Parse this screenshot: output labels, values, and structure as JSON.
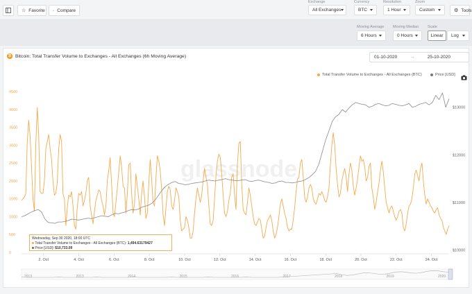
{
  "toolbar": {
    "favorite_label": "Favorite",
    "compare_label": "Compare",
    "tools_label": "Tools",
    "exchange": {
      "label": "Exchange",
      "value": "All Exchanges"
    },
    "currency": {
      "label": "Currency",
      "value": "BTC"
    },
    "resolution": {
      "label": "Resolution",
      "value": "1 Hour"
    },
    "zoom": {
      "label": "Zoom",
      "value": "Custom"
    }
  },
  "controls": {
    "moving_average": {
      "label": "Moving Average",
      "value": "6 Hours"
    },
    "moving_median": {
      "label": "Moving Median",
      "value": "0 Hours"
    },
    "scale": {
      "label": "Scale",
      "options": [
        "Linear",
        "Log"
      ],
      "selected": "Linear"
    }
  },
  "chart_panel": {
    "title": "Bitcoin: Total Transfer Volume to Exchanges - All Exchanges (6h Moving Average)",
    "date_from": "01-10-2020",
    "date_to": "25-10-2020",
    "date_separator": "→",
    "watermark": "glassnode"
  },
  "tooltip": {
    "timestamp": "Wednesday, Sep 30 2020, 18:00 UTC",
    "volume_label": "Total Transfer Volume to Exchanges - All Exchanges (BTC):",
    "volume_value": "1,494.63179427",
    "price_label": "Price [USD]:",
    "price_value": "$10,733.09"
  },
  "colors": {
    "volume": "#f5a94c",
    "price": "#8a8a8a",
    "accent": "#f7931a"
  },
  "chart_data": {
    "type": "line",
    "series": [
      {
        "name": "Total Transfer Volume to Exchanges - All Exchanges (BTC)",
        "axis": "left",
        "values": [
          1450,
          1500,
          1550,
          1650,
          3050,
          3700,
          3250,
          2400,
          1500,
          1150,
          3050,
          4050,
          3300,
          1700,
          1650,
          1650,
          2000,
          2900,
          3100,
          3300,
          2900,
          2600,
          2000,
          1600,
          1650,
          1950,
          2900,
          3300,
          3100,
          1650,
          1500,
          750,
          1250,
          1600,
          1550,
          1700,
          1300,
          750,
          650,
          1250,
          1650,
          1600,
          1700,
          1300,
          1450,
          1650,
          2000,
          2100,
          1300,
          1050,
          800,
          1150,
          1450,
          1600,
          1750,
          1700,
          1450,
          1300,
          1050,
          1300,
          2000,
          2300,
          2650,
          1900,
          1100,
          1000,
          1400,
          1800,
          2250,
          2700,
          2400,
          1850,
          1800,
          1100,
          1650,
          2450,
          2500,
          1650,
          1100,
          1350,
          2200,
          1850,
          1500,
          1050,
          1650,
          2000,
          1550,
          950,
          1100,
          1950,
          2600,
          2050,
          1400,
          1300,
          2100,
          2700,
          2550,
          2300,
          1750,
          1050,
          750,
          1250,
          1700,
          1850,
          1750,
          1300,
          1200,
          1450,
          1800,
          1700,
          1550,
          900,
          600,
          650,
          700,
          1000,
          900,
          700,
          400,
          400,
          600,
          1100,
          1500,
          1800,
          1600,
          1400,
          1600,
          2000,
          2350,
          2100,
          1900,
          1300,
          800,
          750,
          900,
          1500,
          2150,
          2550,
          2750,
          2650,
          2200,
          1600,
          1100,
          1000,
          1150,
          1450,
          1650,
          2100,
          2200,
          1600,
          1200,
          2500,
          3050,
          3100,
          1900,
          1200,
          1100,
          1050,
          1400,
          1800,
          1600,
          1300,
          1000,
          800,
          750,
          850,
          950,
          900,
          650,
          400,
          450,
          700,
          900,
          950,
          1050,
          900,
          600,
          400,
          500,
          700,
          1000,
          1350,
          1500,
          1300,
          1100,
          950,
          700,
          600,
          650,
          650,
          900,
          1250,
          1700,
          2050,
          2100,
          2500,
          2600,
          2100,
          1550,
          1400,
          1550,
          1800,
          1900,
          1800,
          1500,
          1400,
          1350,
          1500,
          1650,
          1600,
          1700,
          1600,
          1450,
          1400,
          1550,
          1800,
          2450,
          3000,
          3350,
          3000,
          2350,
          1900,
          1550,
          1650,
          2000,
          2200,
          2350,
          2100,
          1700,
          2200,
          2500,
          2300,
          1850,
          1600,
          1800,
          2050,
          2400,
          2700,
          2550,
          2600,
          2400,
          2000,
          2100,
          2400,
          2500,
          1800,
          1550,
          1200,
          1400,
          1700,
          1950,
          2300,
          2550,
          2250,
          1800,
          1400,
          1250,
          1100,
          1250,
          1300,
          1150,
          1000,
          900,
          1000,
          1150,
          1200,
          1100,
          700,
          600,
          800,
          1100,
          1300,
          1350,
          1500,
          1800,
          2200,
          2300,
          2150,
          2000,
          2350,
          2500,
          2000,
          1600,
          1350,
          1500,
          1400,
          1300,
          1250,
          1150,
          1100,
          1200,
          1250,
          1050,
          950,
          900,
          700,
          600,
          500,
          650,
          750
        ]
      },
      {
        "name": "Price [USD]",
        "axis": "right",
        "values": [
          10700,
          10720,
          10760,
          10800,
          10830,
          10850,
          10800,
          10650,
          10580,
          10570,
          10560,
          10590,
          10590,
          10600,
          10620,
          10650,
          10640,
          10630,
          10640,
          10660,
          10670,
          10660,
          10680,
          10700,
          10720,
          10710,
          10700,
          10740,
          10770,
          10760,
          10780,
          10800,
          10830,
          10850,
          10840,
          10860,
          10900,
          10920,
          10940,
          10980,
          11050,
          11150,
          11250,
          11330,
          11380,
          11420,
          11440,
          11400,
          11390,
          11370,
          11380,
          11400,
          11410,
          11420,
          11430,
          11450,
          11470,
          11460,
          11450,
          11470,
          11480,
          11500,
          11480,
          11470,
          11460,
          11460,
          11470,
          11480,
          11450,
          11440,
          11460,
          11470,
          11450,
          11430,
          11420,
          11400,
          11410,
          11440,
          11450,
          11420,
          11420,
          11410,
          11420,
          11440,
          11450,
          11480,
          11520,
          11580,
          11650,
          11800,
          12050,
          12300,
          12500,
          12700,
          12800,
          12850,
          12950,
          12900,
          12980,
          13050,
          13100,
          13080,
          13060,
          13050,
          13000,
          13020,
          13060,
          13080,
          13050,
          13030,
          13040,
          13080,
          13060,
          13040,
          13030,
          13050,
          13080,
          13000,
          13020,
          13060,
          13080,
          13100,
          13050,
          13100,
          13250,
          13160,
          13300,
          13000,
          13180
        ]
      }
    ],
    "x_tick_labels": [
      "2. Oct",
      "4. Oct",
      "6. Oct",
      "8. Oct",
      "10. Oct",
      "12. Oct",
      "14. Oct",
      "16. Oct",
      "18. Oct",
      "20. Oct",
      "22. Oct",
      "24. Oct"
    ],
    "x_range": [
      "2020-09-30T18:00",
      "2020-10-25T00:00"
    ],
    "y_left": {
      "ticks": [
        0,
        500,
        1000,
        1500,
        2000,
        2500,
        3000,
        3500,
        4000,
        4500
      ],
      "range": [
        0,
        4500
      ]
    },
    "y_right": {
      "ticks": [
        "$10000",
        "$11000",
        "$12000",
        "$13000"
      ],
      "values": [
        10000,
        11000,
        12000,
        13000
      ],
      "range": [
        9950,
        13330
      ]
    },
    "navigator_year_labels": [
      "2013",
      "2013",
      "2014",
      "2015",
      "2016",
      "2017",
      "2018",
      "2019",
      "2020"
    ],
    "legend_position": "top-right",
    "grid": false
  }
}
